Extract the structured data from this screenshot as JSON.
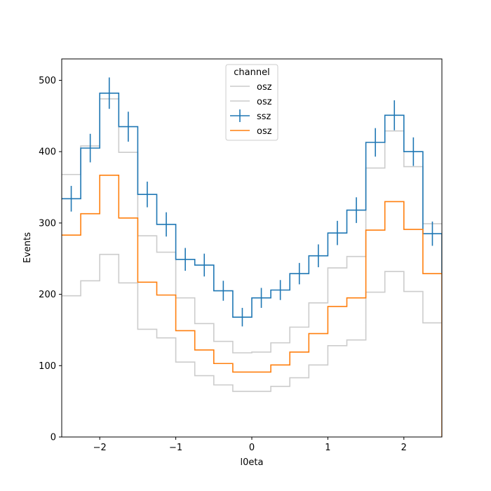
{
  "chart_data": {
    "type": "histogram",
    "xlabel": "l0eta",
    "ylabel": "Events",
    "xlim": [
      -2.5,
      2.5
    ],
    "ylim": [
      0,
      530
    ],
    "xticks": [
      -2,
      -1,
      0,
      1,
      2
    ],
    "yticks": [
      0,
      100,
      200,
      300,
      400,
      500
    ],
    "bin_edges": [
      -2.5,
      -2.25,
      -2.0,
      -1.75,
      -1.5,
      -1.25,
      -1.0,
      -0.75,
      -0.5,
      -0.25,
      0.0,
      0.25,
      0.5,
      0.75,
      1.0,
      1.25,
      1.5,
      1.75,
      2.0,
      2.25,
      2.5
    ],
    "grid": false,
    "legend": {
      "title": "channel",
      "placement": "top-center"
    },
    "colors": {
      "grey": "#cccccc",
      "blue": "#1f77b4",
      "orange": "#ff7f0e"
    },
    "series": [
      {
        "name": "osz",
        "style": "step",
        "color": "#cccccc",
        "values": [
          368,
          408,
          474,
          399,
          282,
          259,
          195,
          159,
          134,
          118,
          119,
          132,
          154,
          188,
          237,
          253,
          377,
          429,
          379,
          299
        ]
      },
      {
        "name": "osz",
        "style": "step",
        "color": "#cccccc",
        "values": [
          198,
          219,
          256,
          216,
          151,
          139,
          105,
          86,
          73,
          64,
          64,
          71,
          83,
          101,
          128,
          136,
          203,
          232,
          204,
          160
        ]
      },
      {
        "name": "ssz",
        "style": "step-errorbar",
        "color": "#1f77b4",
        "values": [
          334,
          405,
          482,
          435,
          340,
          298,
          249,
          241,
          205,
          168,
          195,
          206,
          229,
          254,
          286,
          318,
          413,
          451,
          400,
          285
        ],
        "errors": [
          18,
          20,
          22,
          21,
          18,
          17,
          16,
          16,
          14,
          13,
          14,
          14,
          15,
          16,
          17,
          18,
          20,
          21,
          20,
          17
        ]
      },
      {
        "name": "osz",
        "style": "step",
        "color": "#ff7f0e",
        "values": [
          283,
          313,
          367,
          307,
          217,
          199,
          149,
          122,
          103,
          91,
          91,
          101,
          119,
          145,
          183,
          195,
          290,
          330,
          291,
          229
        ]
      }
    ]
  }
}
